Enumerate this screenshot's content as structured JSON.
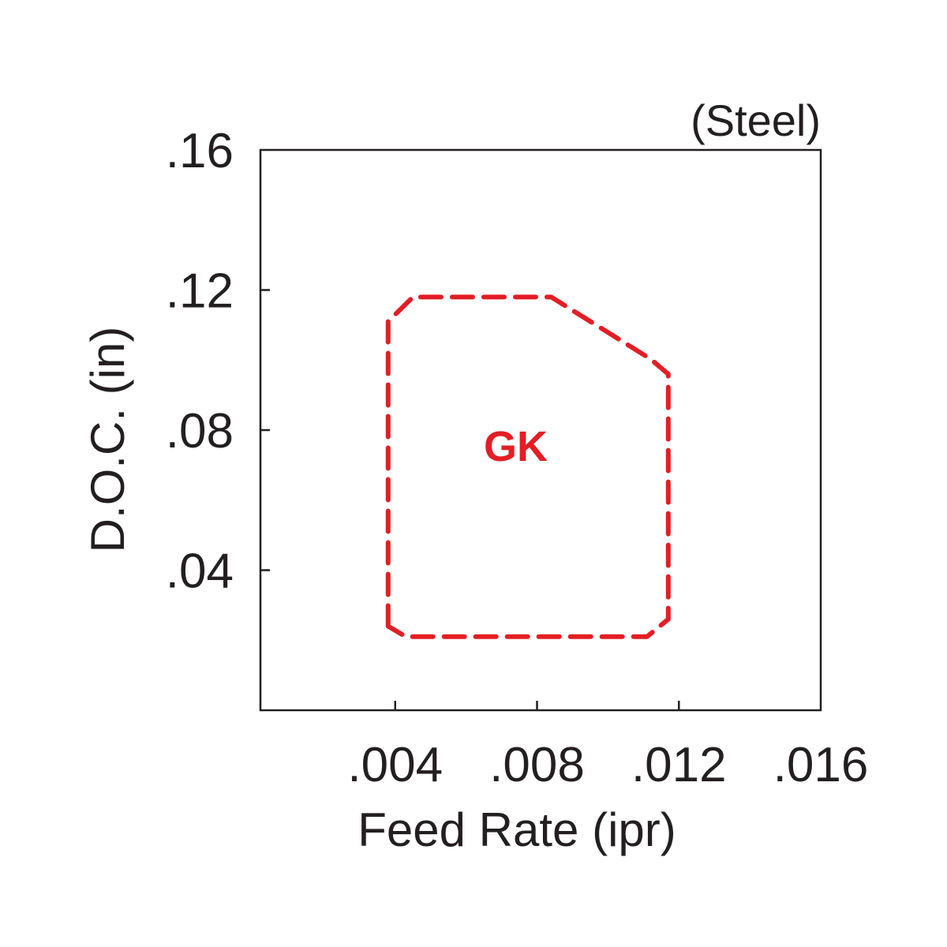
{
  "chart_data": {
    "type": "area",
    "material": "(Steel)",
    "xlabel": "Feed Rate (ipr)",
    "ylabel": "D.O.C. (in)",
    "xlim": [
      0.0002,
      0.016
    ],
    "ylim": [
      0.0,
      0.16
    ],
    "x_ticks": [
      {
        "value": 0.004,
        "label": ".004"
      },
      {
        "value": 0.008,
        "label": ".008"
      },
      {
        "value": 0.012,
        "label": ".012"
      },
      {
        "value": 0.016,
        "label": ".016"
      }
    ],
    "y_ticks": [
      {
        "value": 0.04,
        "label": ".04"
      },
      {
        "value": 0.08,
        "label": ".08"
      },
      {
        "value": 0.12,
        "label": ".12"
      },
      {
        "value": 0.16,
        "label": ".16"
      }
    ],
    "grid": false,
    "regions": [
      {
        "name": "GK",
        "color": "#e31e24",
        "line_style": "dashed",
        "label_position": [
          0.0074,
          0.0755
        ],
        "boundary": [
          [
            0.0038,
            0.024
          ],
          [
            0.0038,
            0.111
          ],
          [
            0.0045,
            0.118
          ],
          [
            0.0084,
            0.118
          ],
          [
            0.0112,
            0.1003
          ],
          [
            0.0117,
            0.096
          ],
          [
            0.0117,
            0.026
          ],
          [
            0.0111,
            0.021
          ],
          [
            0.0043,
            0.021
          ]
        ]
      }
    ]
  }
}
